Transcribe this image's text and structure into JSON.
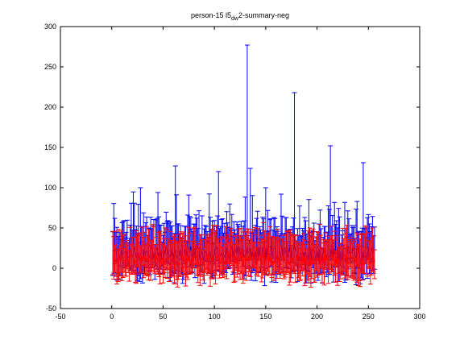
{
  "chart_data": {
    "type": "errorbar",
    "title": {
      "main": "person-15 l5",
      "subscript": "dw",
      "suffix": "2-summary-neg"
    },
    "xlabel": "",
    "ylabel": "",
    "xlim": [
      -50,
      300
    ],
    "ylim": [
      -50,
      300
    ],
    "xticks": [
      -50,
      0,
      50,
      100,
      150,
      200,
      250,
      300
    ],
    "yticks": [
      -50,
      0,
      50,
      100,
      150,
      200,
      250,
      300
    ],
    "grid": false,
    "x_range": [
      1,
      256
    ],
    "colors": {
      "series_a": "#0000ff",
      "series_b": "#ff0000",
      "axes": "#000000"
    },
    "series": [
      {
        "color": "#0000ff",
        "note": "mean ~10–25 with wide upper error bars; tallest near x=132 (~277), x=178 (~218), x=213 (~152), x=130 (~120), x=104 (~120)",
        "peaks": [
          [
            132,
            277
          ],
          [
            178,
            218
          ],
          [
            213,
            152
          ],
          [
            135,
            124
          ],
          [
            104,
            120
          ],
          [
            245,
            131
          ],
          [
            62,
            127
          ],
          [
            28,
            100
          ],
          [
            150,
            100
          ]
        ]
      },
      {
        "color": "#ff0000",
        "note": "mean ~5–15 with error bars roughly -25 to 55",
        "range": [
          -25,
          60
        ]
      }
    ]
  }
}
